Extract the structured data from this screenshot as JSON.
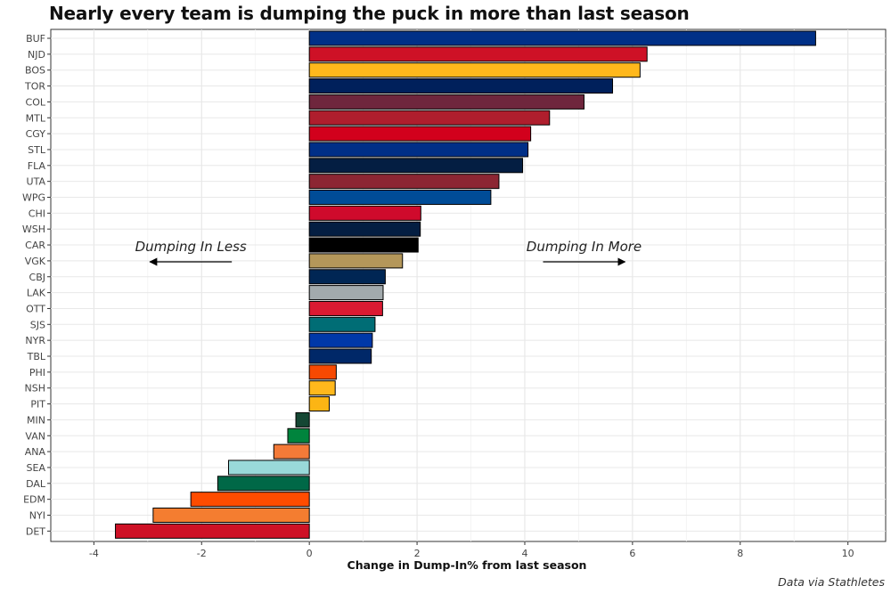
{
  "chart_data": {
    "type": "bar",
    "orientation": "horizontal",
    "title": "Nearly every team is dumping the puck in more than last season",
    "xlabel": "Change in Dump-In% from last season",
    "ylabel": "",
    "xlim": [
      -4.8,
      10.7
    ],
    "xticks": [
      -4,
      -2,
      0,
      2,
      4,
      6,
      8,
      10
    ],
    "grid": true,
    "categories": [
      "BUF",
      "NJD",
      "BOS",
      "TOR",
      "COL",
      "MTL",
      "CGY",
      "STL",
      "FLA",
      "UTA",
      "WPG",
      "CHI",
      "WSH",
      "CAR",
      "VGK",
      "CBJ",
      "LAK",
      "OTT",
      "SJS",
      "NYR",
      "TBL",
      "PHI",
      "NSH",
      "PIT",
      "MIN",
      "VAN",
      "ANA",
      "SEA",
      "DAL",
      "EDM",
      "NYI",
      "DET"
    ],
    "values": [
      9.4,
      6.27,
      6.14,
      5.63,
      5.1,
      4.46,
      4.11,
      4.06,
      3.96,
      3.52,
      3.37,
      2.07,
      2.06,
      2.02,
      1.73,
      1.41,
      1.37,
      1.36,
      1.22,
      1.17,
      1.15,
      0.5,
      0.48,
      0.37,
      -0.25,
      -0.4,
      -0.66,
      -1.5,
      -1.7,
      -2.2,
      -2.9,
      -3.6
    ],
    "colors": [
      "#003087",
      "#CE1126",
      "#FFB81C",
      "#00205B",
      "#6F263D",
      "#AF1E2D",
      "#D2001C",
      "#002F87",
      "#041E42",
      "#8C2633",
      "#004C97",
      "#CF0A2C",
      "#041E42",
      "#000000",
      "#B4975A",
      "#002654",
      "#A2AAAD",
      "#DA1A32",
      "#006D75",
      "#0038A8",
      "#002868",
      "#F74902",
      "#FFB81C",
      "#FCB514",
      "#154734",
      "#00843D",
      "#F47A38",
      "#99D9D9",
      "#006847",
      "#FF4C00",
      "#F47D30",
      "#CE1126"
    ],
    "annotations": [
      {
        "text": "Dumping In Less",
        "x": -2.2,
        "direction": "left"
      },
      {
        "text": "Dumping In More",
        "x": 5.1,
        "direction": "right"
      }
    ],
    "caption": "Data via Stathletes"
  }
}
